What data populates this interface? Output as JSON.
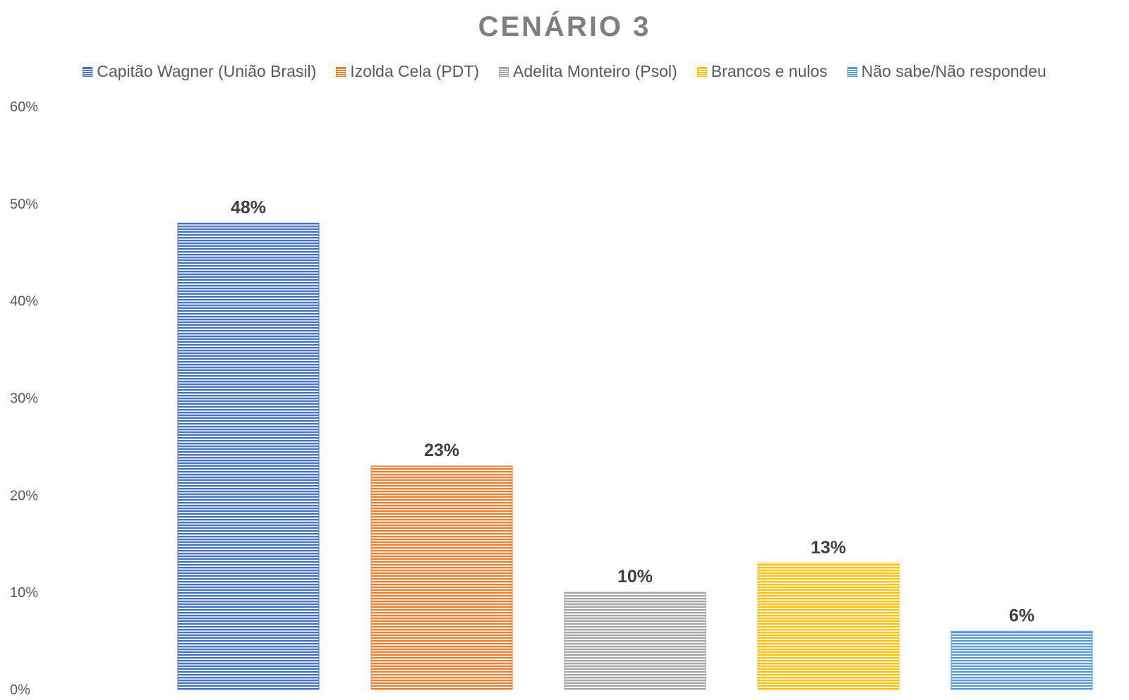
{
  "chart_data": {
    "type": "bar",
    "title": "CENÁRIO 3",
    "categories": [
      "Capitão Wagner (União Brasil)",
      "Izolda Cela (PDT)",
      "Adelita Monteiro (Psol)",
      "Brancos e nulos",
      "Não sabe/Não respondeu"
    ],
    "values": [
      48,
      23,
      10,
      13,
      6
    ],
    "data_labels": [
      "48%",
      "23%",
      "10%",
      "13%",
      "6%"
    ],
    "colors": [
      "#4472c4",
      "#ed7d31",
      "#a5a5a5",
      "#ffc000",
      "#5b9bd5"
    ],
    "ylim": [
      0,
      60
    ],
    "yticks": [
      0,
      10,
      20,
      30,
      40,
      50,
      60
    ],
    "ytick_labels": [
      "0%",
      "10%",
      "20%",
      "30%",
      "40%",
      "50%",
      "60%"
    ],
    "xlabel": "",
    "ylabel": "",
    "legend_position": "top",
    "grid": false,
    "fill_pattern": "horizontal-stripes"
  }
}
